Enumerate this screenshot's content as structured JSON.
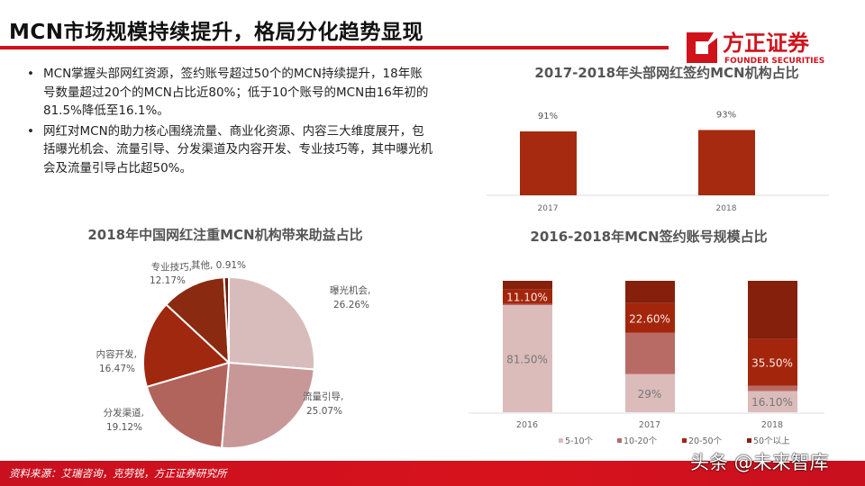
{
  "header": {
    "title": "MCN市场规模持续提升，格局分化趋势显现",
    "logo_cn": "方正证券",
    "logo_en": "FOUNDER SECURITIES",
    "accent": "#d0121b"
  },
  "bullets": [
    "MCN掌握头部网红资源，签约账号超过50个的MCN持续提升，18年账号数量超过20个的MCN占比近80%；低于10个账号的MCN由16年初的81.5%降低至16.1%。",
    "网红对MCN的助力核心围绕流量、商业化资源、内容三大维度展开，包括曝光机会、流量引导、分发渠道及内容开发、专业技巧等，其中曝光机会及流量引导占比超50%。"
  ],
  "chart_data": [
    {
      "type": "bar",
      "title": "2017-2018年头部网红签约MCN机构占比",
      "categories": [
        "2017",
        "2018"
      ],
      "values": [
        91,
        93
      ],
      "data_labels": [
        "91%",
        "93%"
      ],
      "color": "#a52a10",
      "ylim": [
        0,
        100
      ]
    },
    {
      "type": "pie",
      "title": "2018年中国网红注重MCN机构带来助益占比",
      "slices": [
        {
          "label": "曝光机会,",
          "value": 26.26,
          "text": "26.26%",
          "color": "#d8bcbc"
        },
        {
          "label": "流量引导,",
          "value": 25.07,
          "text": "25.07%",
          "color": "#c89898"
        },
        {
          "label": "分发渠道,",
          "value": 19.12,
          "text": "19.12%",
          "color": "#b0645c"
        },
        {
          "label": "内容开发,",
          "value": 16.47,
          "text": "16.47%",
          "color": "#a0280f"
        },
        {
          "label": "专业技巧,",
          "value": 12.17,
          "text": "12.17%",
          "color": "#8a2a10"
        },
        {
          "label": "其他,",
          "value": 0.91,
          "text": "0.91%",
          "color": "#6e1a08"
        }
      ]
    },
    {
      "type": "bar",
      "stacked": true,
      "title": "2016-2018年MCN签约账号规模占比",
      "categories": [
        "2016",
        "2017",
        "2018"
      ],
      "series": [
        {
          "name": "5-10个",
          "values": [
            81.5,
            29,
            16.1
          ],
          "labels": [
            "81.50%",
            "29%",
            "16.10%"
          ],
          "color": "#dbbcbb"
        },
        {
          "name": "10-20个",
          "values": [
            1,
            31.4,
            4
          ],
          "labels": [
            "",
            "",
            ""
          ],
          "color": "#b86a64"
        },
        {
          "name": "20-50个",
          "values": [
            11.1,
            22.6,
            35.5
          ],
          "labels": [
            "11.10%",
            "22.60%",
            "35.50%"
          ],
          "color": "#a3260c"
        },
        {
          "name": "50个以上",
          "values": [
            6.4,
            17,
            44.4
          ],
          "labels": [
            "",
            "",
            ""
          ],
          "color": "#85200c"
        }
      ],
      "ylim": [
        0,
        100
      ],
      "legend": "bottom"
    }
  ],
  "footer": {
    "source": "资料来源：艾瑞咨询，克劳锐，方正证券研究所",
    "watermark": "头条 @未来智库"
  }
}
